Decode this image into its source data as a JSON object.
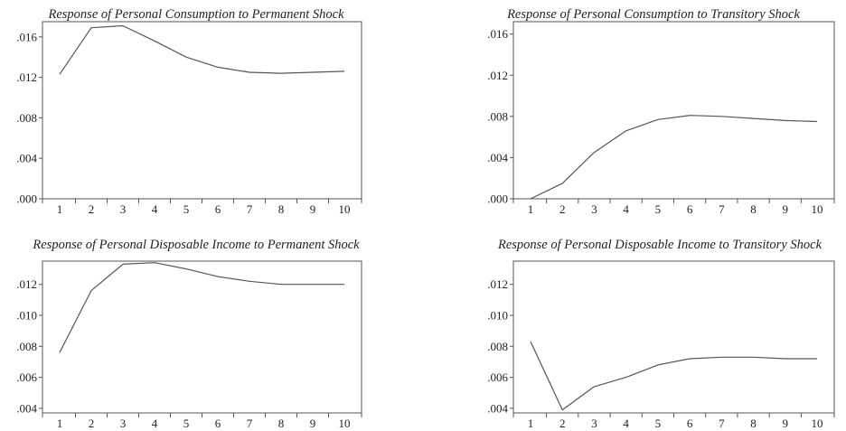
{
  "chart_data": [
    {
      "type": "line",
      "title": "Response of Personal Consumption to Permanent Shock",
      "x": [
        1,
        2,
        3,
        4,
        5,
        6,
        7,
        8,
        9,
        10
      ],
      "x_tick_labels": [
        "1",
        "2",
        "3",
        "4",
        "5",
        "6",
        "7",
        "8",
        "9",
        "10"
      ],
      "y_tick_labels": [
        ".000",
        ".004",
        ".008",
        ".012",
        ".016"
      ],
      "y_ticks": [
        0.0,
        0.004,
        0.008,
        0.012,
        0.016
      ],
      "ylim": [
        0.0,
        0.0175
      ],
      "series": [
        {
          "values": [
            0.0123,
            0.0169,
            0.0171,
            0.0156,
            0.014,
            0.013,
            0.0125,
            0.0124,
            0.0125,
            0.0126
          ]
        }
      ],
      "grid": false,
      "color": "#555555"
    },
    {
      "type": "line",
      "title": "Response of Personal Consumption to Transitory Shock",
      "x": [
        1,
        2,
        3,
        4,
        5,
        6,
        7,
        8,
        9,
        10
      ],
      "x_tick_labels": [
        "1",
        "2",
        "3",
        "4",
        "5",
        "6",
        "7",
        "8",
        "9",
        "10"
      ],
      "y_tick_labels": [
        ".000",
        ".004",
        ".008",
        ".012",
        ".016"
      ],
      "y_ticks": [
        0.0,
        0.004,
        0.008,
        0.012,
        0.016
      ],
      "ylim": [
        0.0,
        0.0172
      ],
      "series": [
        {
          "values": [
            0.0,
            0.0015,
            0.0045,
            0.0066,
            0.0077,
            0.0081,
            0.008,
            0.0078,
            0.0076,
            0.0075
          ]
        }
      ],
      "grid": false,
      "color": "#555555"
    },
    {
      "type": "line",
      "title": "Response of Personal Disposable Income to Permanent Shock",
      "x": [
        1,
        2,
        3,
        4,
        5,
        6,
        7,
        8,
        9,
        10
      ],
      "x_tick_labels": [
        "1",
        "2",
        "3",
        "4",
        "5",
        "6",
        "7",
        "8",
        "9",
        "10"
      ],
      "y_tick_labels": [
        ".004",
        ".006",
        ".008",
        ".010",
        ".012"
      ],
      "y_ticks": [
        0.004,
        0.006,
        0.008,
        0.01,
        0.012
      ],
      "ylim": [
        0.0037,
        0.0135
      ],
      "series": [
        {
          "values": [
            0.0076,
            0.0116,
            0.0133,
            0.0134,
            0.013,
            0.0125,
            0.0122,
            0.012,
            0.012,
            0.012
          ]
        }
      ],
      "grid": false,
      "color": "#555555"
    },
    {
      "type": "line",
      "title": "Response of Personal Disposable Income to Transitory Shock",
      "x": [
        1,
        2,
        3,
        4,
        5,
        6,
        7,
        8,
        9,
        10
      ],
      "x_tick_labels": [
        "1",
        "2",
        "3",
        "4",
        "5",
        "6",
        "7",
        "8",
        "9",
        "10"
      ],
      "y_tick_labels": [
        ".004",
        ".006",
        ".008",
        ".010",
        ".012"
      ],
      "y_ticks": [
        0.004,
        0.006,
        0.008,
        0.01,
        0.012
      ],
      "ylim": [
        0.0037,
        0.0135
      ],
      "series": [
        {
          "values": [
            0.0083,
            0.0039,
            0.0054,
            0.006,
            0.0068,
            0.0072,
            0.0073,
            0.0073,
            0.0072,
            0.0072
          ]
        }
      ],
      "grid": false,
      "color": "#555555"
    }
  ]
}
